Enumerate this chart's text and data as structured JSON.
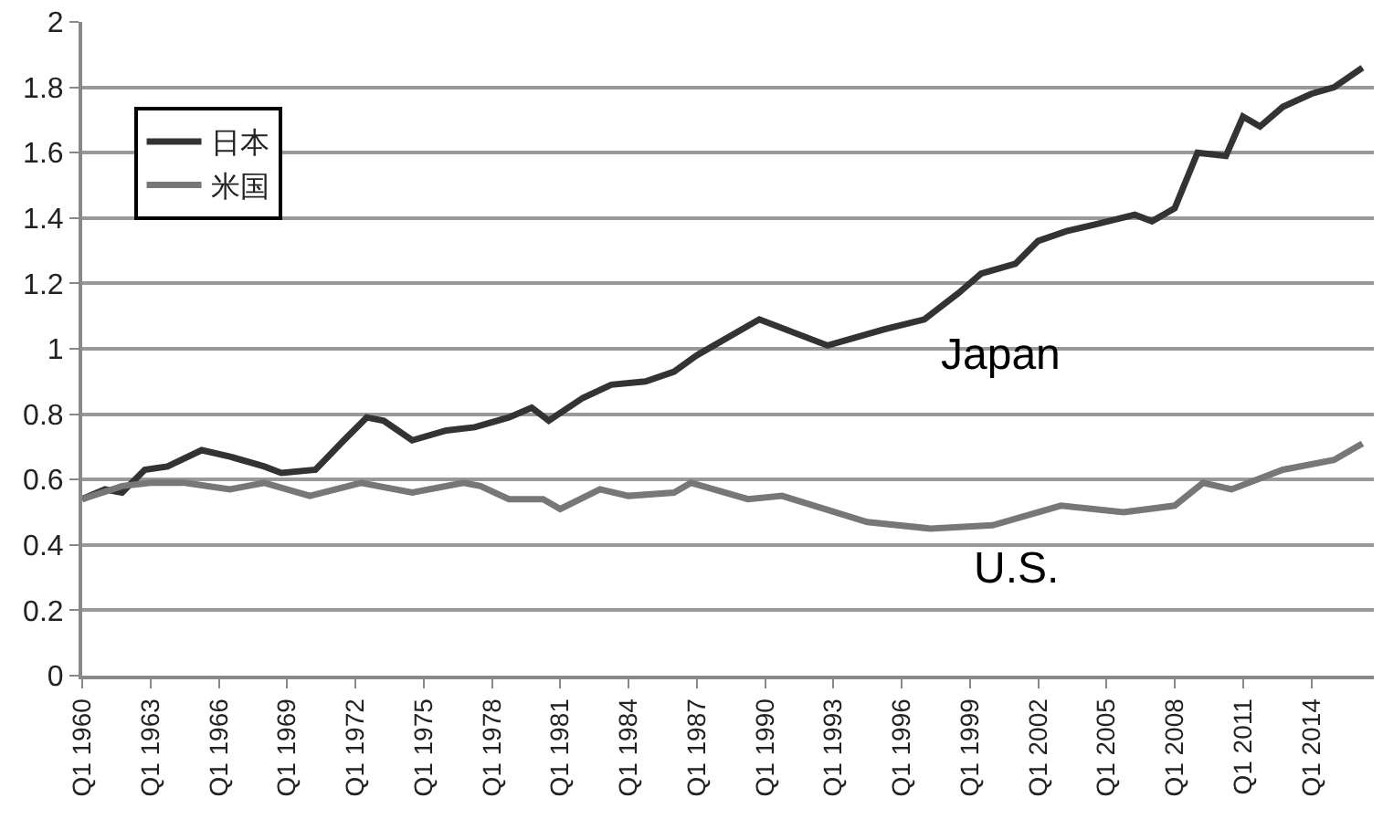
{
  "chart_data": {
    "type": "line",
    "xlim": [
      "1960-01",
      "2016-10"
    ],
    "ylim": [
      0,
      2
    ],
    "yticks": [
      0,
      0.2,
      0.4,
      0.6,
      0.8,
      1,
      1.2,
      1.4,
      1.6,
      1.8,
      2
    ],
    "xticks": [
      {
        "value": "1960-01",
        "label": "Q1 1960"
      },
      {
        "value": "1963-01",
        "label": "Q1 1963"
      },
      {
        "value": "1966-01",
        "label": "Q1 1966"
      },
      {
        "value": "1969-01",
        "label": "Q1 1969"
      },
      {
        "value": "1972-01",
        "label": "Q1 1972"
      },
      {
        "value": "1975-01",
        "label": "Q1 1975"
      },
      {
        "value": "1978-01",
        "label": "Q1 1978"
      },
      {
        "value": "1981-01",
        "label": "Q1 1981"
      },
      {
        "value": "1984-01",
        "label": "Q1 1984"
      },
      {
        "value": "1987-01",
        "label": "Q1 1987"
      },
      {
        "value": "1990-01",
        "label": "Q1 1990"
      },
      {
        "value": "1993-01",
        "label": "Q1 1993"
      },
      {
        "value": "1996-01",
        "label": "Q1 1996"
      },
      {
        "value": "1999-01",
        "label": "Q1 1999"
      },
      {
        "value": "2002-01",
        "label": "Q1 2002"
      },
      {
        "value": "2005-01",
        "label": "Q1 2005"
      },
      {
        "value": "2008-01",
        "label": "Q1 2008"
      },
      {
        "value": "2011-01",
        "label": "Q1 2011"
      },
      {
        "value": "2014-01",
        "label": "Q1 2014"
      }
    ],
    "grid": "y",
    "legend": "top left",
    "marker": "none",
    "line_style": "solid",
    "series": [
      {
        "name": "日本",
        "color": "#333333",
        "x": [
          "1960-01",
          "1961-01",
          "1961-10",
          "1962-10",
          "1963-10",
          "1965-04",
          "1966-07",
          "1968-01",
          "1968-10",
          "1970-04",
          "1971-07",
          "1972-07",
          "1973-04",
          "1974-07",
          "1976-01",
          "1977-04",
          "1978-10",
          "1979-10",
          "1980-07",
          "1982-01",
          "1983-04",
          "1984-10",
          "1986-01",
          "1987-01",
          "1989-10",
          "1992-10",
          "1995-04",
          "1997-01",
          "1998-07",
          "1999-07",
          "2001-01",
          "2002-01",
          "2003-04",
          "2004-07",
          "2006-04",
          "2007-01",
          "2008-01",
          "2009-01",
          "2010-04",
          "2011-01",
          "2011-10",
          "2012-10",
          "2014-01",
          "2015-01",
          "2016-04"
        ],
        "values": [
          0.54,
          0.57,
          0.56,
          0.63,
          0.64,
          0.69,
          0.67,
          0.64,
          0.62,
          0.63,
          0.72,
          0.79,
          0.78,
          0.72,
          0.75,
          0.76,
          0.79,
          0.82,
          0.78,
          0.85,
          0.89,
          0.9,
          0.93,
          0.98,
          1.09,
          1.01,
          1.06,
          1.09,
          1.17,
          1.23,
          1.26,
          1.33,
          1.36,
          1.38,
          1.41,
          1.39,
          1.43,
          1.6,
          1.59,
          1.71,
          1.68,
          1.74,
          1.78,
          1.8,
          1.86
        ]
      },
      {
        "name": "米国",
        "color": "#777777",
        "x": [
          "1960-01",
          "1961-10",
          "1963-01",
          "1964-07",
          "1966-07",
          "1968-01",
          "1970-01",
          "1972-04",
          "1974-07",
          "1976-10",
          "1977-07",
          "1978-10",
          "1980-04",
          "1981-01",
          "1982-10",
          "1984-01",
          "1986-01",
          "1986-10",
          "1989-04",
          "1990-10",
          "1994-07",
          "1997-04",
          "2000-01",
          "2003-01",
          "2005-10",
          "2008-01",
          "2009-04",
          "2010-07",
          "2012-10",
          "2015-01",
          "2016-04"
        ],
        "values": [
          0.54,
          0.58,
          0.59,
          0.59,
          0.57,
          0.59,
          0.55,
          0.59,
          0.56,
          0.59,
          0.58,
          0.54,
          0.54,
          0.51,
          0.57,
          0.55,
          0.56,
          0.59,
          0.54,
          0.55,
          0.47,
          0.45,
          0.46,
          0.52,
          0.5,
          0.52,
          0.59,
          0.57,
          0.63,
          0.66,
          0.71
        ]
      }
    ],
    "annotations": [
      "Japan",
      "U.S."
    ]
  }
}
